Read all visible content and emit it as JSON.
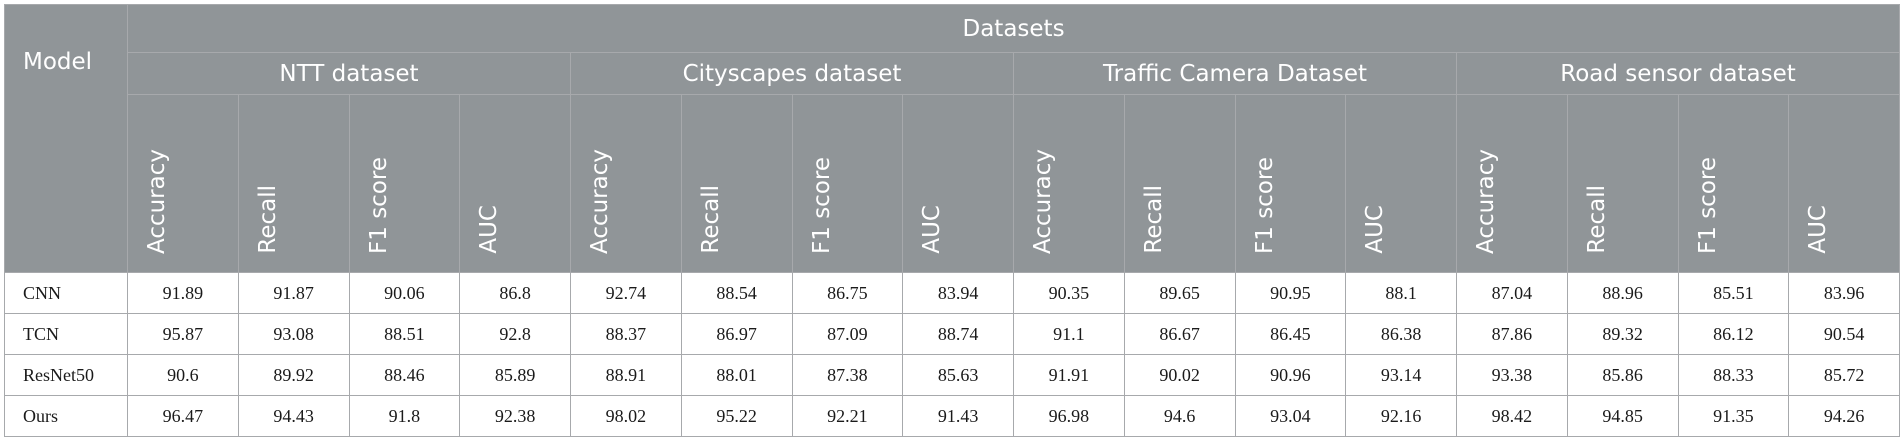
{
  "table": {
    "model_header": "Model",
    "datasets_header": "Datasets",
    "groups": [
      "NTT dataset",
      "Cityscapes dataset",
      "Traffic Camera Dataset",
      "Road sensor dataset"
    ],
    "metrics": [
      "Accuracy",
      "Recall",
      "F1 score",
      "AUC"
    ],
    "rows": [
      {
        "model": "CNN",
        "values": [
          "91.89",
          "91.87",
          "90.06",
          "86.8",
          "92.74",
          "88.54",
          "86.75",
          "83.94",
          "90.35",
          "89.65",
          "90.95",
          "88.1",
          "87.04",
          "88.96",
          "85.51",
          "83.96"
        ]
      },
      {
        "model": "TCN",
        "values": [
          "95.87",
          "93.08",
          "88.51",
          "92.8",
          "88.37",
          "86.97",
          "87.09",
          "88.74",
          "91.1",
          "86.67",
          "86.45",
          "86.38",
          "87.86",
          "89.32",
          "86.12",
          "90.54"
        ]
      },
      {
        "model": "ResNet50",
        "values": [
          "90.6",
          "89.92",
          "88.46",
          "85.89",
          "88.91",
          "88.01",
          "87.38",
          "85.63",
          "91.91",
          "90.02",
          "90.96",
          "93.14",
          "93.38",
          "85.86",
          "88.33",
          "85.72"
        ]
      },
      {
        "model": "Ours",
        "values": [
          "96.47",
          "94.43",
          "91.8",
          "92.38",
          "98.02",
          "95.22",
          "92.21",
          "91.43",
          "96.98",
          "94.6",
          "93.04",
          "92.16",
          "98.42",
          "94.85",
          "91.35",
          "94.26"
        ]
      }
    ]
  }
}
